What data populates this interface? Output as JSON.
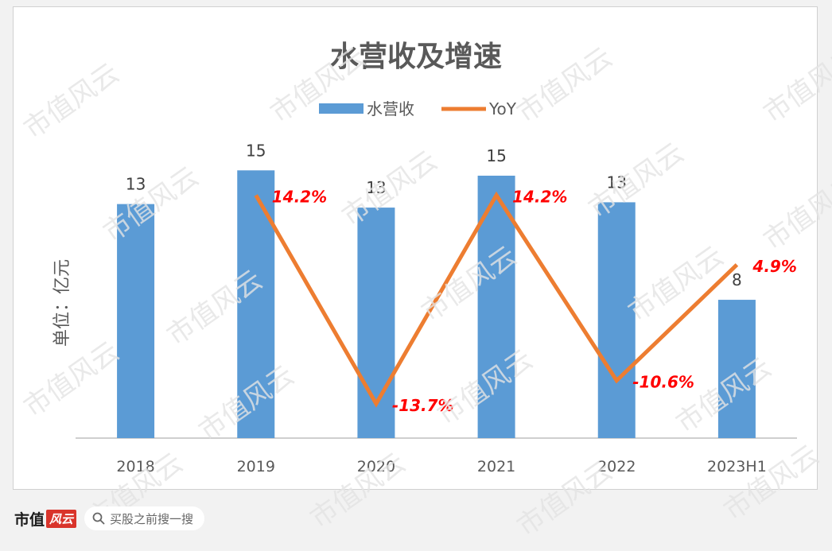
{
  "chart_data": {
    "type": "bar+line",
    "title": "水营收及增速",
    "ylabel": "单位：亿元",
    "categories": [
      "2018",
      "2019",
      "2020",
      "2021",
      "2022",
      "2023H1"
    ],
    "series": [
      {
        "name": "水营收",
        "type": "bar",
        "color": "#5b9bd5",
        "values": [
          13.2,
          15.1,
          13.0,
          14.8,
          13.3,
          7.8
        ],
        "labels": [
          "13",
          "15",
          "13",
          "15",
          "13",
          "8"
        ]
      },
      {
        "name": "YoY",
        "type": "line",
        "color": "#ed7d31",
        "values": [
          null,
          14.2,
          -13.7,
          14.2,
          -10.6,
          4.9
        ],
        "labels": [
          "",
          "14.2%",
          "-13.7%",
          "14.2%",
          "-10.6%",
          "4.9%"
        ]
      }
    ],
    "legend_position": "top-center",
    "grid": false
  },
  "watermark": "市值风云",
  "footer": {
    "brand_text": "市值",
    "brand_badge": "风云",
    "search_placeholder": "买股之前搜一搜"
  },
  "colors": {
    "bar": "#5b9bd5",
    "line": "#ed7d31",
    "pct_label": "#ff0000",
    "text": "#595959"
  }
}
